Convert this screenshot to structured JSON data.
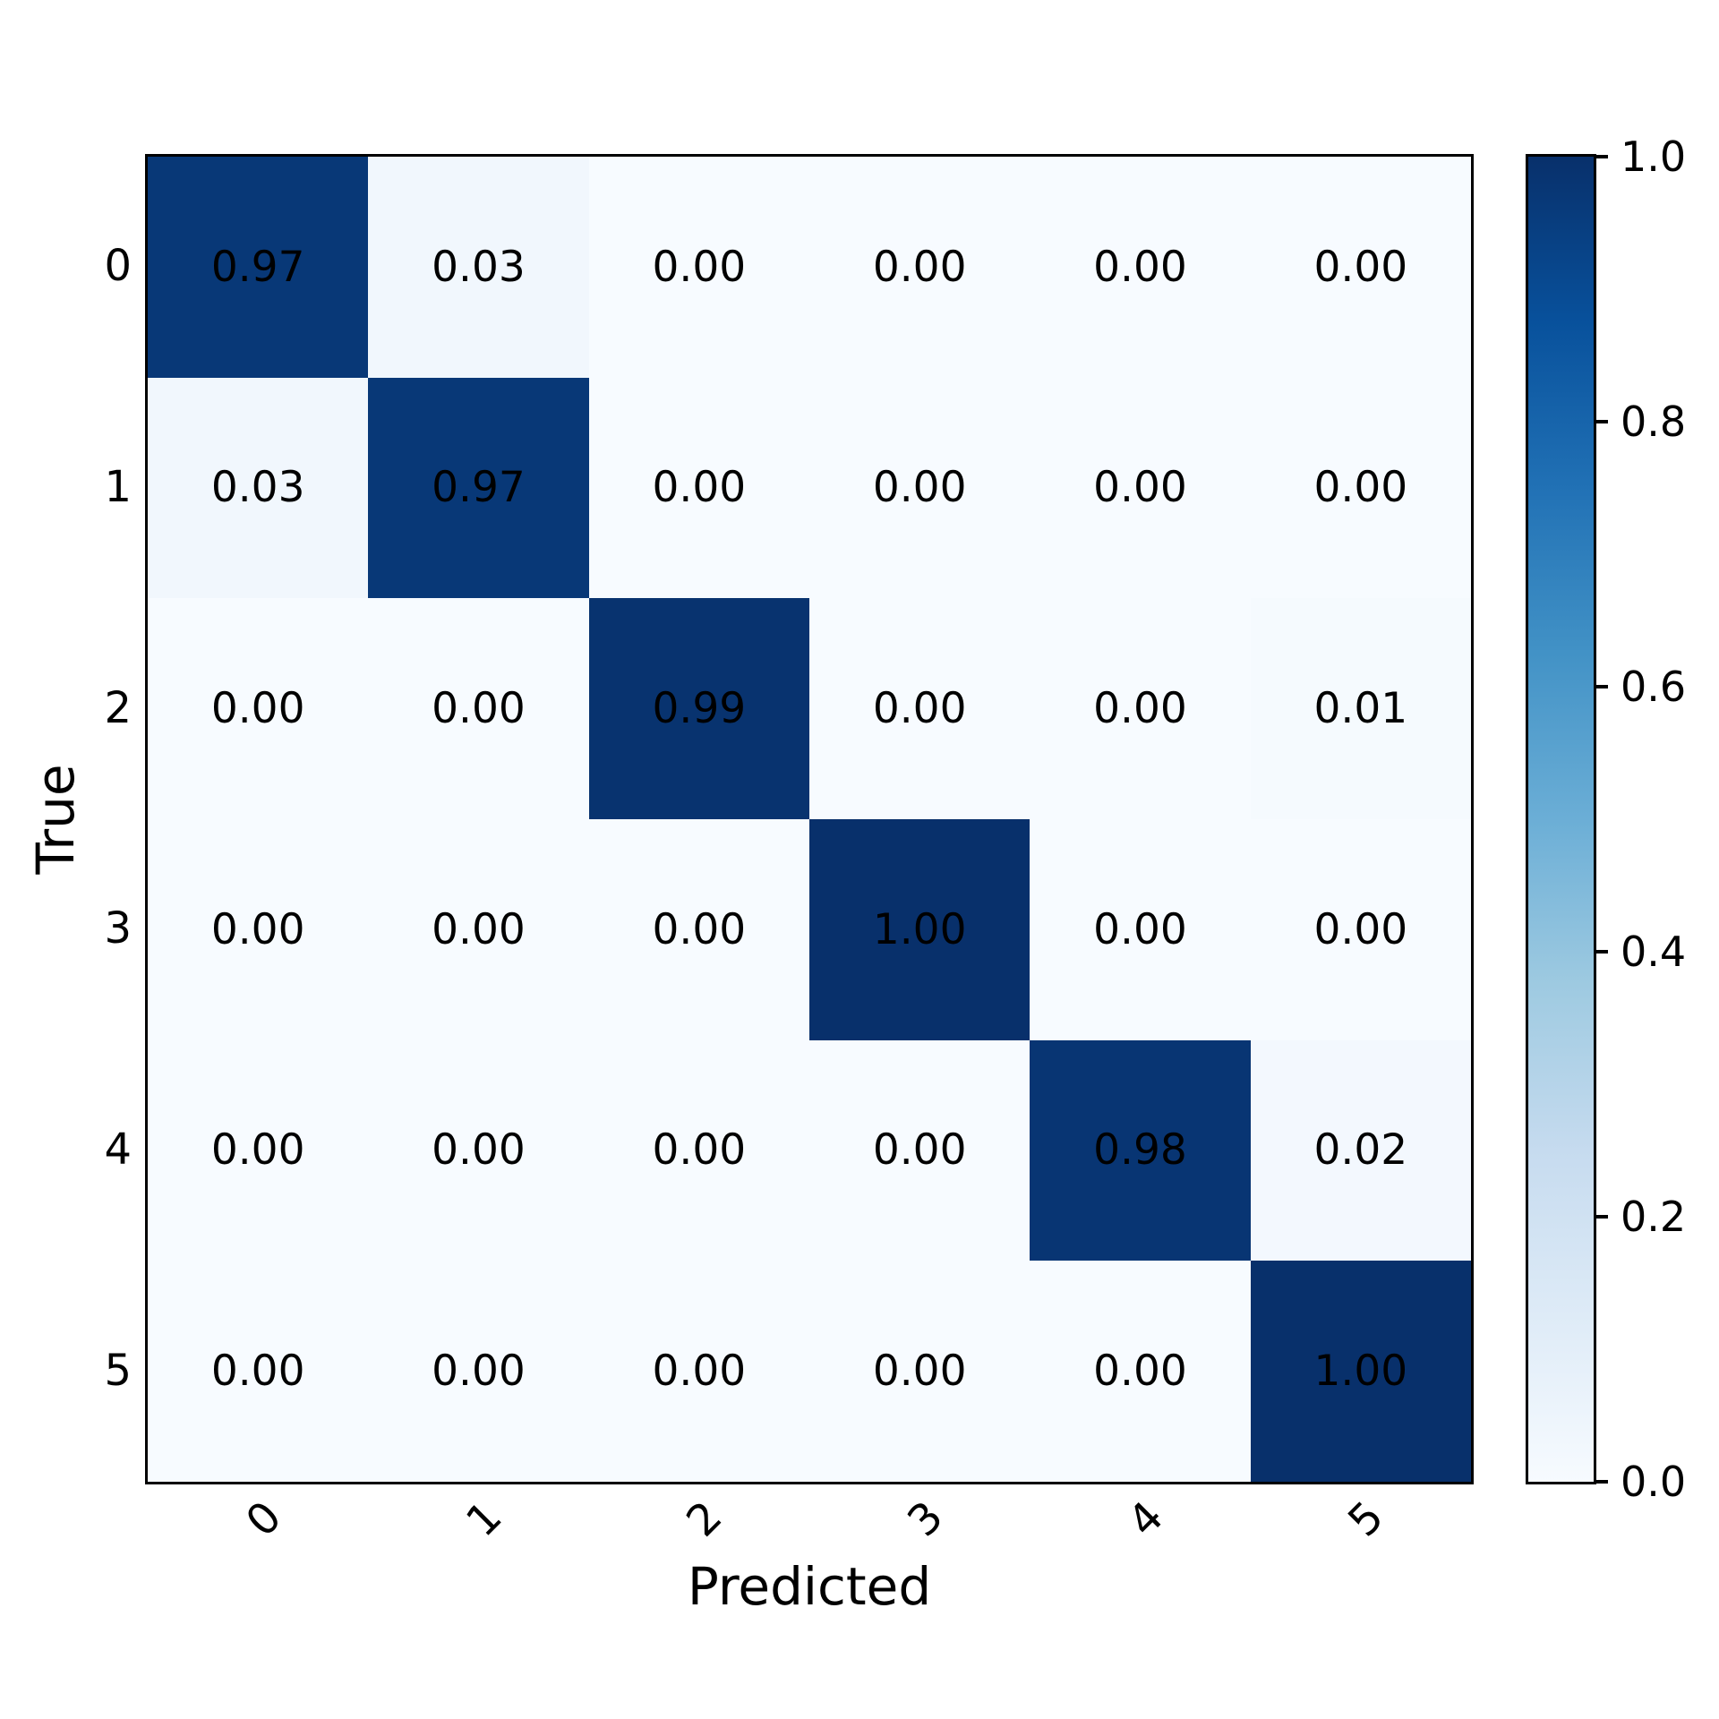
{
  "figure": {
    "background": "#ffffff",
    "spine_color": "#000000",
    "text_color": "#000000"
  },
  "chart_data": {
    "type": "heatmap",
    "title": "",
    "xlabel": "Predicted",
    "ylabel": "True",
    "x_ticklabels": [
      "0",
      "1",
      "2",
      "3",
      "4",
      "5"
    ],
    "y_ticklabels": [
      "0",
      "1",
      "2",
      "3",
      "4",
      "5"
    ],
    "matrix": [
      [
        0.97,
        0.03,
        0.0,
        0.0,
        0.0,
        0.0
      ],
      [
        0.03,
        0.97,
        0.0,
        0.0,
        0.0,
        0.0
      ],
      [
        0.0,
        0.0,
        0.99,
        0.0,
        0.0,
        0.01
      ],
      [
        0.0,
        0.0,
        0.0,
        1.0,
        0.0,
        0.0
      ],
      [
        0.0,
        0.0,
        0.0,
        0.0,
        0.98,
        0.02
      ],
      [
        0.0,
        0.0,
        0.0,
        0.0,
        0.0,
        1.0
      ]
    ],
    "value_decimals": 2,
    "vmin": 0.0,
    "vmax": 1.0,
    "colormap": "Blues",
    "colormap_stops": [
      "#f7fbff",
      "#deebf7",
      "#c6dbef",
      "#9ecae1",
      "#6baed6",
      "#4292c6",
      "#2171b5",
      "#08519c",
      "#08306b"
    ],
    "colorbar": {
      "position": "right",
      "tick_labels": [
        "1.0",
        "0.8",
        "0.6",
        "0.4",
        "0.2",
        "0.0"
      ],
      "tick_values": [
        1.0,
        0.8,
        0.6,
        0.4,
        0.2,
        0.0
      ]
    },
    "grid": false,
    "x_tick_rotation_deg": 45
  }
}
